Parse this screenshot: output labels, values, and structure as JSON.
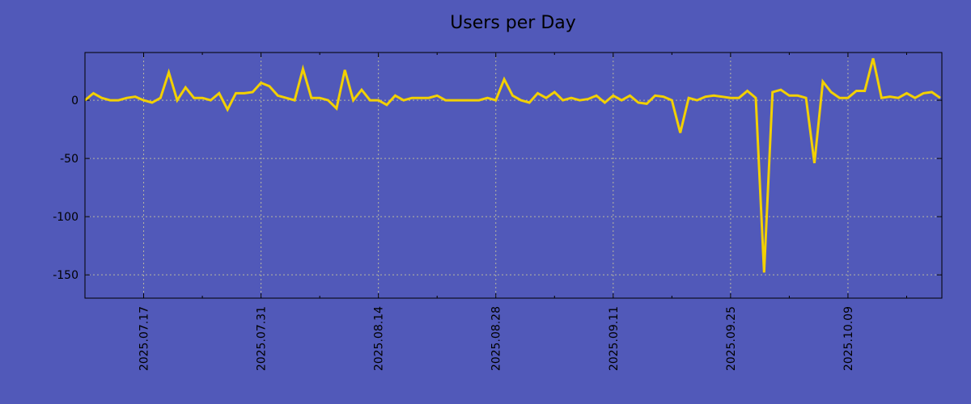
{
  "chart_data": {
    "type": "line",
    "title": "Users per Day",
    "xlabel": "",
    "ylabel": "",
    "start_date": "2025.07.10",
    "x_tick_labels": [
      "2025.07.17",
      "2025.07.31",
      "2025.08.14",
      "2025.08.28",
      "2025.09.11",
      "2025.09.25",
      "2025.10.09"
    ],
    "x_tick_days": [
      7,
      21,
      35,
      49,
      63,
      77,
      91
    ],
    "y_ticks": [
      0,
      -50,
      -100,
      -150
    ],
    "ylim": [
      -170,
      41
    ],
    "xlim": [
      0,
      102.2
    ],
    "grid": true,
    "series": [
      {
        "name": "Users per Day",
        "color": "#f2d000",
        "values": [
          0,
          6,
          2,
          0,
          0,
          2,
          3,
          0,
          -2,
          2,
          24,
          0,
          11,
          2,
          2,
          0,
          6,
          -8,
          6,
          6,
          7,
          15,
          12,
          4,
          2,
          0,
          27,
          2,
          2,
          0,
          -7,
          26,
          0,
          9,
          0,
          0,
          -4,
          4,
          0,
          2,
          2,
          2,
          4,
          0,
          0,
          0,
          0,
          0,
          2,
          0,
          18,
          4,
          0,
          -2,
          6,
          2,
          7,
          0,
          2,
          0,
          1,
          4,
          -2,
          4,
          0,
          4,
          -2,
          -3,
          4,
          3,
          0,
          -28,
          2,
          0,
          3,
          4,
          3,
          2,
          2,
          8,
          2,
          -148,
          7,
          9,
          4,
          4,
          2,
          -54,
          16,
          7,
          2,
          2,
          8,
          8,
          36,
          2,
          3,
          2,
          6,
          2,
          6,
          7,
          2
        ]
      }
    ]
  }
}
